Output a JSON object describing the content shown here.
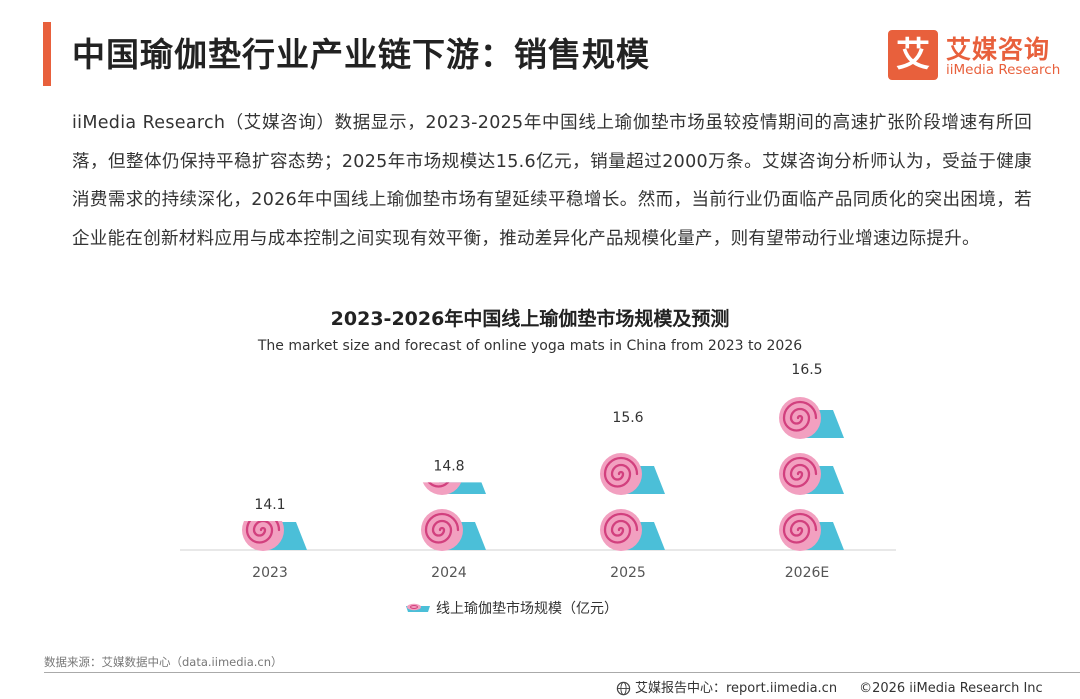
{
  "header": {
    "title": "中国瑜伽垫行业产业链下游：销售规模",
    "logo_mark": "艾",
    "logo_cn": "艾媒咨询",
    "logo_en": "iiMedia Research"
  },
  "intro_text": "iiMedia Research（艾媒咨询）数据显示，2023-2025年中国线上瑜伽垫市场虽较疫情期间的高速扩张阶段增速有所回落，但整体仍保持平稳扩容态势；2025年市场规模达15.6亿元，销量超过2000万条。艾媒咨询分析师认为，受益于健康消费需求的持续深化，2026年中国线上瑜伽垫市场有望延续平稳增长。然而，当前行业仍面临产品同质化的突出困境，若企业能在创新材料应用与成本控制之间实现有效平衡，推动差异化产品规模化量产，则有望带动行业增速边际提升。",
  "chart_data": {
    "type": "bar",
    "style": "pictograph",
    "title": "2023-2026年中国线上瑜伽垫市场规模及预测",
    "subtitle": "The market size and forecast of online yoga mats in China from 2023 to 2026",
    "categories": [
      "2023",
      "2024",
      "2025",
      "2026E"
    ],
    "series": [
      {
        "name": "线上瑜伽垫市场规模（亿元）",
        "values": [
          14.1,
          14.8,
          15.6,
          16.5
        ]
      }
    ],
    "value_labels": [
      "14.1",
      "14.8",
      "15.6",
      "16.5"
    ],
    "ylim": [
      13.6,
      16.5
    ],
    "units_per_icon": 1,
    "icon": "rolled-yoga-mat-icon",
    "colors": {
      "mat": "#4bbfd8",
      "roll": "#f2a0c0",
      "spiral": "#d2407e"
    },
    "legend_position": "bottom-center"
  },
  "footer": {
    "source": "数据来源：艾媒数据中心（data.iimedia.cn）",
    "report_center": "艾媒报告中心：report.iimedia.cn",
    "copyright": "©2026  iiMedia Research  Inc"
  }
}
